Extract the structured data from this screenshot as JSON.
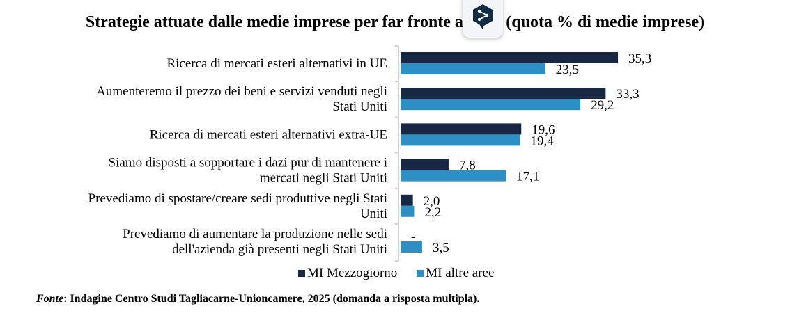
{
  "title": "Strategie attuate dalle medie imprese per far fronte ai dazi (quota % di medie imprese)",
  "extension_icon": "deepl-translate-icon",
  "chart_data": {
    "type": "bar",
    "orientation": "horizontal",
    "title": "Strategie attuate dalle medie imprese per far fronte ai dazi (quota % di medie imprese)",
    "xlabel": "",
    "ylabel": "",
    "xlim": [
      0,
      40
    ],
    "grid": false,
    "legend_position": "bottom",
    "categories": [
      [
        "Ricerca di mercati esteri alternativi in UE"
      ],
      [
        "Aumenteremo il prezzo dei beni e servizi venduti negli",
        "Stati Uniti"
      ],
      [
        "Ricerca di mercati esteri alternativi extra-UE"
      ],
      [
        "Siamo disposti a sopportare i dazi pur di mantenere i",
        "mercati negli Stati Uniti"
      ],
      [
        "Prevediamo di spostare/creare sedi produttive negli Stati",
        "Uniti"
      ],
      [
        "Prevediamo di aumentare la produzione nelle sedi",
        "dell'azienda già presenti negli Stati Uniti"
      ]
    ],
    "series": [
      {
        "name": "MI Mezzogiorno",
        "color": "#172744",
        "values": [
          35.3,
          33.3,
          19.6,
          7.8,
          2.0,
          null
        ],
        "labels": [
          "35,3",
          "33,3",
          "19,6",
          "7,8",
          "2,0",
          "-"
        ]
      },
      {
        "name": "MI altre aree",
        "color": "#2e8fc5",
        "values": [
          23.5,
          29.2,
          19.4,
          17.1,
          2.2,
          3.5
        ],
        "labels": [
          "23,5",
          "29,2",
          "19,4",
          "17,1",
          "2,2",
          "3,5"
        ]
      }
    ]
  },
  "legend": {
    "items": [
      {
        "label": "MI Mezzogiorno",
        "color": "#172744"
      },
      {
        "label": "MI altre aree",
        "color": "#2e8fc5"
      }
    ]
  },
  "source": {
    "prefix": "Fonte",
    "text": ": Indagine Centro Studi Tagliacarne-Unioncamere, 2025 (domanda a risposta multipla)."
  }
}
